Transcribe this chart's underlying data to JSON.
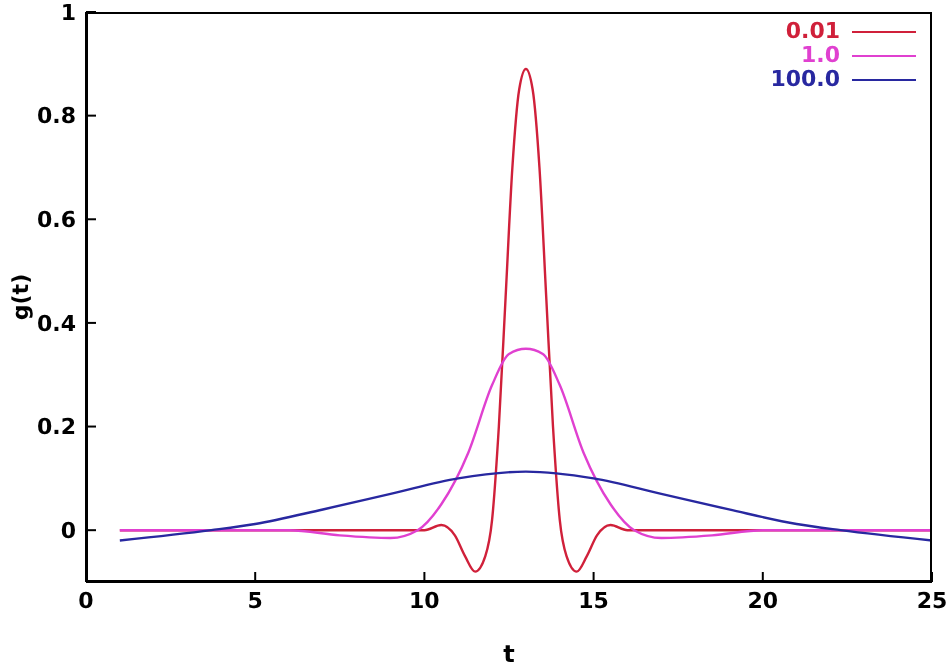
{
  "chart_data": {
    "type": "line",
    "xlabel": "t",
    "ylabel": "g(t)",
    "xlim": [
      0,
      25
    ],
    "xticks": [
      0,
      5,
      10,
      15,
      20,
      25
    ],
    "ylim": [
      -0.1,
      1
    ],
    "yticks": [
      0,
      0.2,
      0.4,
      0.6,
      0.8,
      1
    ],
    "grid": false,
    "legend": "top right",
    "marker": "none",
    "line_style": "solid",
    "series": [
      {
        "name": "0.01",
        "color": "#d0203a",
        "x": [
          1,
          5,
          9.5,
          10,
          10.5,
          10.9,
          11.2,
          11.5,
          11.8,
          12,
          12.2,
          12.4,
          12.6,
          12.8,
          13,
          13.2,
          13.4,
          13.6,
          13.8,
          14,
          14.2,
          14.5,
          14.8,
          15.1,
          15.5,
          16,
          16.5,
          20,
          25
        ],
        "values": [
          0,
          0,
          0,
          0,
          0.01,
          -0.01,
          -0.05,
          -0.08,
          -0.05,
          0.02,
          0.2,
          0.45,
          0.7,
          0.85,
          0.89,
          0.85,
          0.7,
          0.45,
          0.2,
          0.02,
          -0.05,
          -0.08,
          -0.05,
          -0.01,
          0.01,
          0,
          0,
          0,
          0
        ]
      },
      {
        "name": "1.0",
        "color": "#e040d0",
        "x": [
          1,
          6,
          7.5,
          9,
          9.8,
          10.5,
          11.3,
          12,
          12.5,
          13,
          13.5,
          14,
          14.7,
          15.5,
          16.2,
          17,
          18.5,
          20,
          25
        ],
        "values": [
          0,
          0,
          -0.01,
          -0.015,
          0,
          0.05,
          0.15,
          0.28,
          0.34,
          0.35,
          0.34,
          0.28,
          0.15,
          0.05,
          0,
          -0.015,
          -0.01,
          0,
          0
        ]
      },
      {
        "name": "100.0",
        "color": "#2828a0",
        "x": [
          1,
          3.7,
          5,
          7,
          9,
          11,
          13,
          15,
          17,
          19,
          21,
          22.3,
          25
        ],
        "values": [
          -0.02,
          0,
          0.012,
          0.04,
          0.07,
          0.1,
          0.113,
          0.1,
          0.07,
          0.04,
          0.012,
          0,
          -0.02
        ]
      }
    ]
  }
}
